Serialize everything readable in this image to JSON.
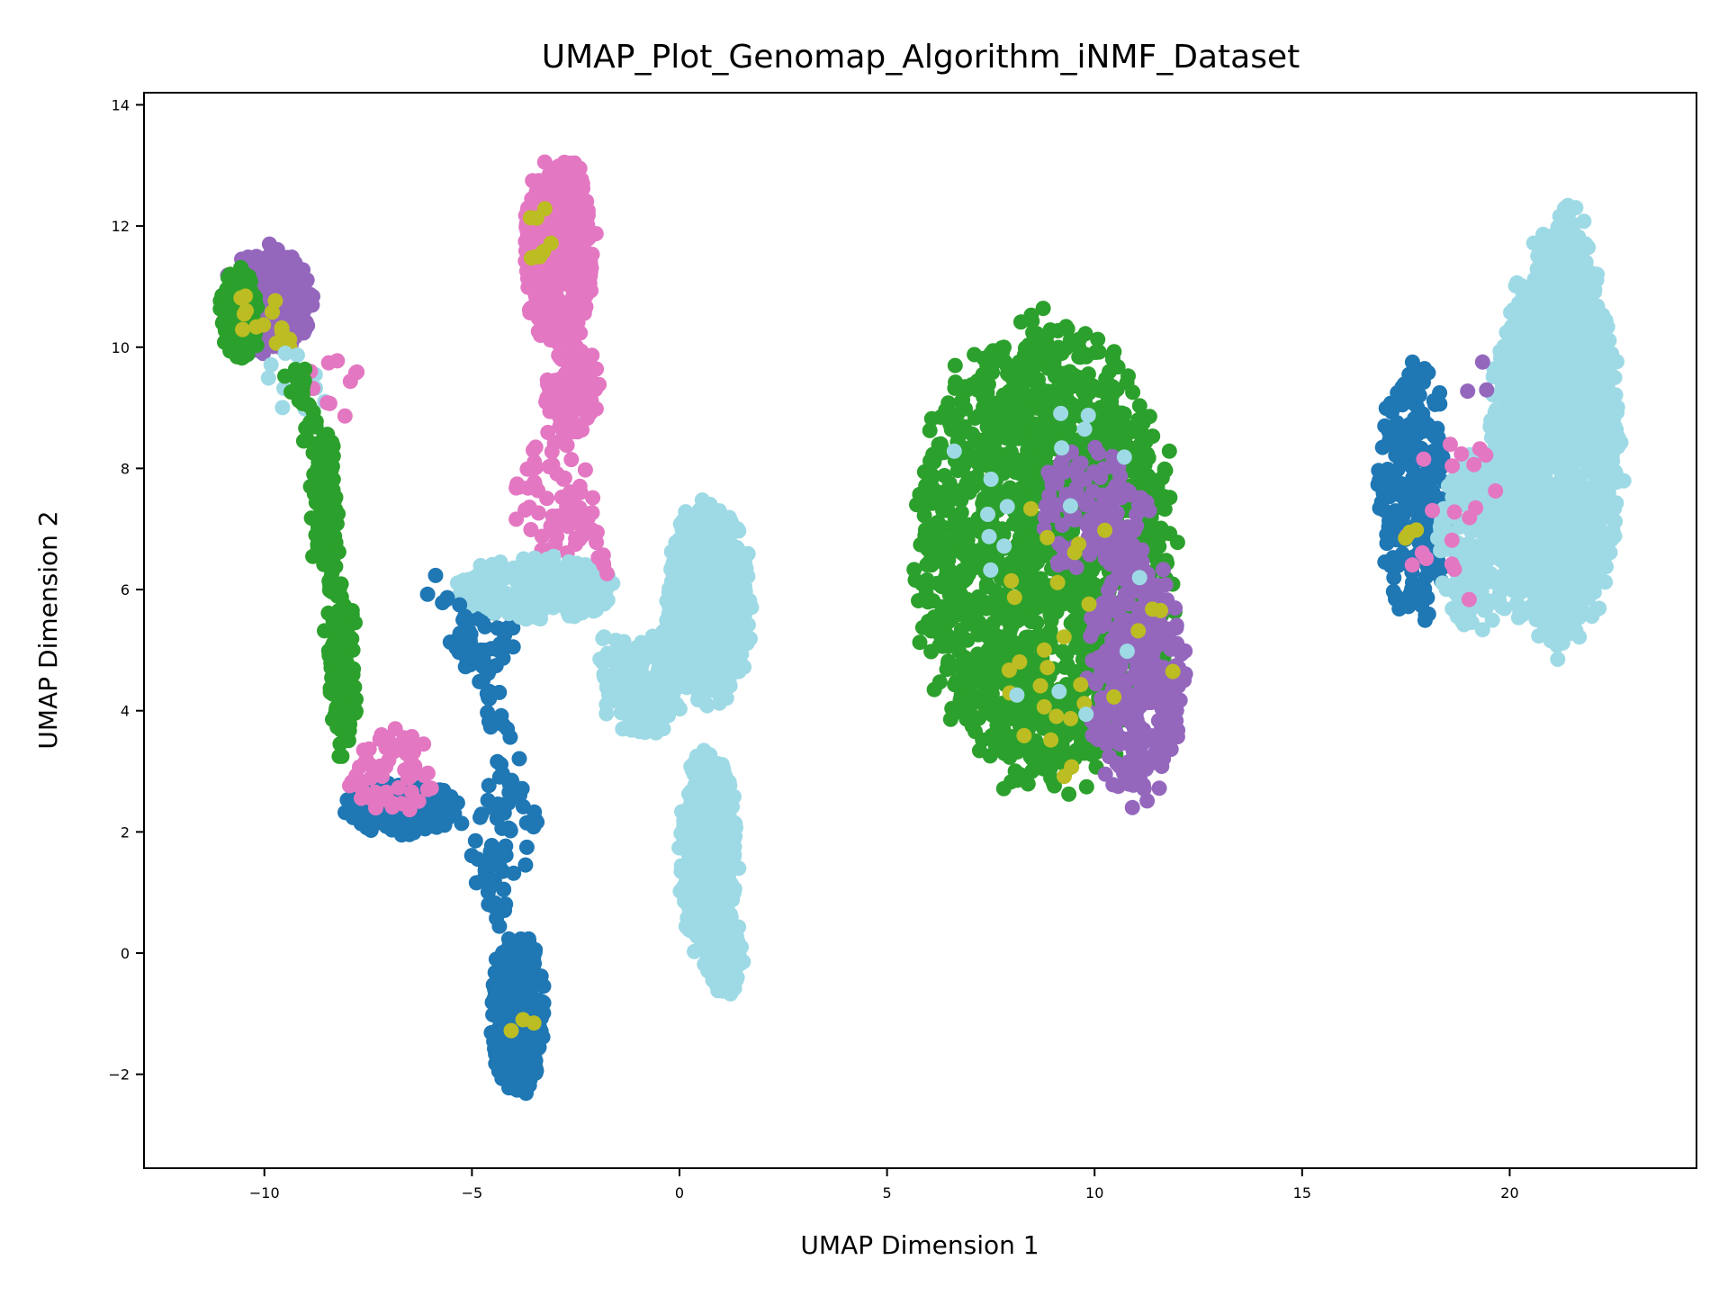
{
  "chart_data": {
    "type": "scatter",
    "title": "UMAP_Plot_Genomap_Algorithm_iNMF_Dataset",
    "xlabel": "UMAP Dimension 1",
    "ylabel": "UMAP Dimension 2",
    "xlim": [
      -12.9,
      24.5
    ],
    "ylim": [
      -3.55,
      14.2
    ],
    "xticks": [
      -10,
      -5,
      0,
      5,
      10,
      15,
      20
    ],
    "yticks": [
      -2,
      0,
      2,
      4,
      6,
      8,
      10,
      12,
      14
    ],
    "xtick_labels": [
      "−10",
      "−5",
      "0",
      "5",
      "10",
      "15",
      "20"
    ],
    "ytick_labels": [
      "−2",
      "0",
      "2",
      "4",
      "6",
      "8",
      "10",
      "12",
      "14"
    ],
    "grid": false,
    "legend": "none",
    "colors": {
      "blue": "#1f77b4",
      "green": "#2ca02c",
      "purple": "#9467bd",
      "pink": "#e377c2",
      "olive": "#bcbd22",
      "cyan": "#9edae5"
    },
    "clusters": [
      {
        "color": "green",
        "cx": 8.8,
        "cy": 6.6,
        "rx": 3.2,
        "ry": 3.9,
        "n": 1600
      },
      {
        "color": "purple",
        "cx": 11.0,
        "cy": 4.6,
        "rx": 1.2,
        "ry": 2.2,
        "n": 300
      },
      {
        "color": "purple",
        "cx": 9.9,
        "cy": 7.3,
        "rx": 1.4,
        "ry": 1.1,
        "n": 120
      },
      {
        "color": "blue",
        "cx": 17.7,
        "cy": 7.6,
        "rx": 0.9,
        "ry": 2.2,
        "n": 220
      },
      {
        "color": "cyan",
        "cx": 21.1,
        "cy": 8.4,
        "rx": 1.6,
        "ry": 3.4,
        "n": 1400
      },
      {
        "color": "cyan",
        "cx": 19.2,
        "cy": 6.8,
        "rx": 1.0,
        "ry": 1.5,
        "n": 200
      },
      {
        "color": "cyan",
        "cx": 21.5,
        "cy": 11.4,
        "rx": 0.5,
        "ry": 1.0,
        "n": 80
      },
      {
        "color": "pink",
        "cx": -2.9,
        "cy": 11.6,
        "rx": 0.9,
        "ry": 1.6,
        "n": 450
      },
      {
        "color": "pink",
        "cx": -2.6,
        "cy": 9.3,
        "rx": 0.7,
        "ry": 0.8,
        "n": 90
      },
      {
        "color": "pink",
        "cx": -3.0,
        "cy": 7.5,
        "rx": 1.0,
        "ry": 1.0,
        "n": 50
      },
      {
        "color": "purple",
        "cx": -9.9,
        "cy": 10.8,
        "rx": 1.1,
        "ry": 0.9,
        "n": 260
      },
      {
        "color": "green",
        "cx": -10.6,
        "cy": 10.5,
        "rx": 0.5,
        "ry": 0.8,
        "n": 120
      },
      {
        "color": "green",
        "cx": -8.5,
        "cy": 7.4,
        "rx": 0.3,
        "ry": 1.4,
        "n": 90
      },
      {
        "color": "green",
        "cx": -8.1,
        "cy": 4.6,
        "rx": 0.35,
        "ry": 1.5,
        "n": 110
      },
      {
        "color": "blue",
        "cx": -6.7,
        "cy": 2.4,
        "rx": 1.4,
        "ry": 0.45,
        "n": 320
      },
      {
        "color": "pink",
        "cx": -7.0,
        "cy": 3.0,
        "rx": 1.1,
        "ry": 0.7,
        "n": 60
      },
      {
        "color": "blue",
        "cx": -3.9,
        "cy": -1.0,
        "rx": 0.65,
        "ry": 1.4,
        "n": 380
      },
      {
        "color": "blue",
        "cx": -4.8,
        "cy": 5.2,
        "rx": 0.9,
        "ry": 0.6,
        "n": 40
      },
      {
        "color": "blue",
        "cx": -4.2,
        "cy": 2.0,
        "rx": 0.9,
        "ry": 1.0,
        "n": 40
      },
      {
        "color": "cyan",
        "cx": -3.5,
        "cy": 6.0,
        "rx": 2.0,
        "ry": 0.55,
        "n": 300
      },
      {
        "color": "cyan",
        "cx": 0.7,
        "cy": 5.8,
        "rx": 1.1,
        "ry": 1.7,
        "n": 500
      },
      {
        "color": "cyan",
        "cx": 0.7,
        "cy": 1.6,
        "rx": 0.7,
        "ry": 1.8,
        "n": 500
      },
      {
        "color": "cyan",
        "cx": -0.9,
        "cy": 4.4,
        "rx": 1.0,
        "ry": 0.8,
        "n": 150
      },
      {
        "color": "cyan",
        "cx": 1.1,
        "cy": 0.0,
        "rx": 0.45,
        "ry": 0.7,
        "n": 150
      },
      {
        "color": "olive",
        "cx": 9.6,
        "cy": 5.2,
        "rx": 2.3,
        "ry": 2.5,
        "n": 30
      },
      {
        "color": "olive",
        "cx": -10.0,
        "cy": 10.4,
        "rx": 0.9,
        "ry": 0.6,
        "n": 14
      },
      {
        "color": "olive",
        "cx": -3.2,
        "cy": 11.8,
        "rx": 0.5,
        "ry": 0.6,
        "n": 8
      },
      {
        "color": "olive",
        "cx": -3.8,
        "cy": -0.8,
        "rx": 0.4,
        "ry": 0.7,
        "n": 3
      },
      {
        "color": "cyan",
        "cx": 9.0,
        "cy": 6.6,
        "rx": 2.7,
        "ry": 3.5,
        "n": 18
      },
      {
        "color": "cyan",
        "cx": -9.2,
        "cy": 9.6,
        "rx": 0.8,
        "ry": 0.8,
        "n": 10
      },
      {
        "color": "pink",
        "cx": 18.6,
        "cy": 7.2,
        "rx": 1.2,
        "ry": 1.6,
        "n": 20
      },
      {
        "color": "pink",
        "cx": -8.3,
        "cy": 9.4,
        "rx": 0.8,
        "ry": 0.6,
        "n": 10
      },
      {
        "color": "purple",
        "cx": 19.0,
        "cy": 9.5,
        "rx": 0.5,
        "ry": 0.5,
        "n": 3
      },
      {
        "color": "olive",
        "cx": 17.5,
        "cy": 6.9,
        "rx": 0.4,
        "ry": 0.3,
        "n": 3
      }
    ],
    "bridges": [
      {
        "color": "blue",
        "points": [
          [
            -5.8,
            5.9
          ],
          [
            -5.0,
            5.2
          ],
          [
            -4.4,
            4.0
          ],
          [
            -4.0,
            2.8
          ]
        ],
        "n": 40
      },
      {
        "color": "blue",
        "points": [
          [
            -5.2,
            2.0
          ],
          [
            -4.6,
            1.3
          ],
          [
            -4.2,
            0.7
          ]
        ],
        "n": 20
      },
      {
        "color": "pink",
        "points": [
          [
            -2.9,
            9.0
          ],
          [
            -2.7,
            7.8
          ],
          [
            -2.3,
            6.8
          ],
          [
            -1.8,
            6.3
          ]
        ],
        "n": 30
      },
      {
        "color": "cyan",
        "points": [
          [
            -2.0,
            5.0
          ],
          [
            -1.0,
            4.8
          ],
          [
            0.0,
            5.3
          ]
        ],
        "n": 50
      },
      {
        "color": "green",
        "points": [
          [
            -9.3,
            9.6
          ],
          [
            -8.8,
            8.6
          ],
          [
            -8.5,
            7.0
          ],
          [
            -8.3,
            5.5
          ],
          [
            -8.0,
            3.8
          ]
        ],
        "n": 120
      }
    ]
  }
}
